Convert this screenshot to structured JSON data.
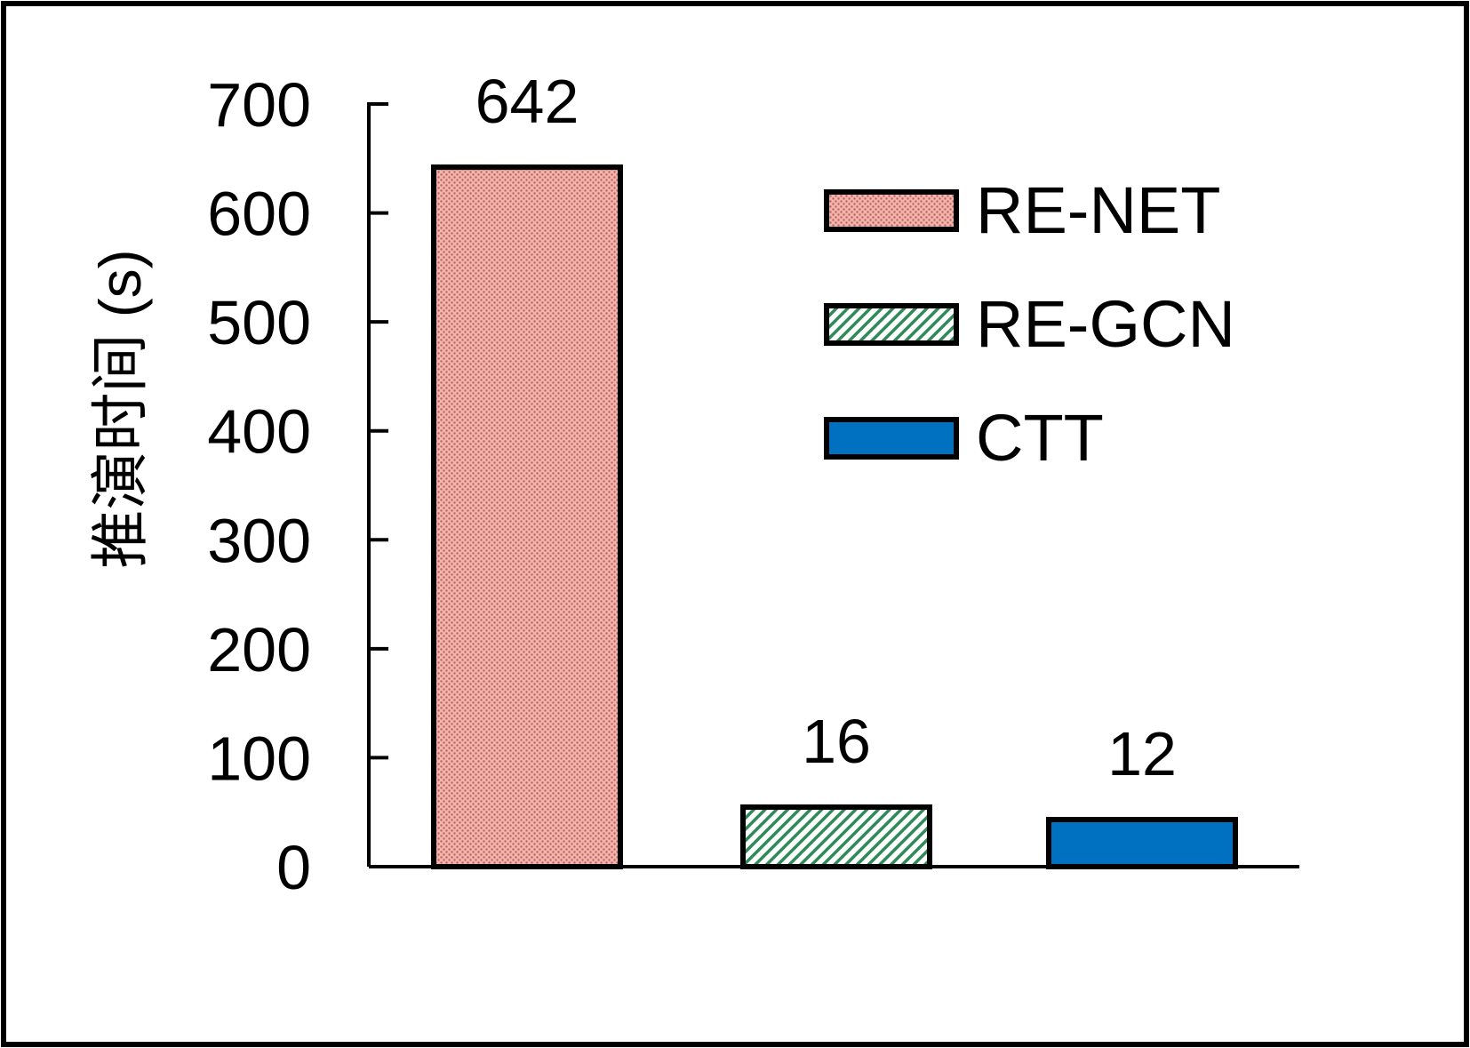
{
  "chart_data": {
    "type": "bar",
    "categories": [
      "RE-NET",
      "RE-GCN",
      "CTT"
    ],
    "values": [
      642,
      16,
      12
    ],
    "data_labels": [
      "642",
      "16",
      "12"
    ],
    "ylabel": "推演时间 (s)",
    "xlabel": "",
    "ylim": [
      0,
      700
    ],
    "yticks": [
      0,
      100,
      200,
      300,
      400,
      500,
      600,
      700
    ],
    "grid": false,
    "legend_position": "top-right",
    "series": [
      {
        "name": "RE-NET",
        "value": 642,
        "color": "#f2a49c",
        "pattern": "dots",
        "pattern_color": "#c8746c"
      },
      {
        "name": "RE-GCN",
        "value": 16,
        "color": "#ffffff",
        "pattern": "diagonal-hatch",
        "pattern_color": "#2e8b57"
      },
      {
        "name": "CTT",
        "value": 12,
        "color": "#0070c0",
        "pattern": "solid"
      }
    ]
  }
}
